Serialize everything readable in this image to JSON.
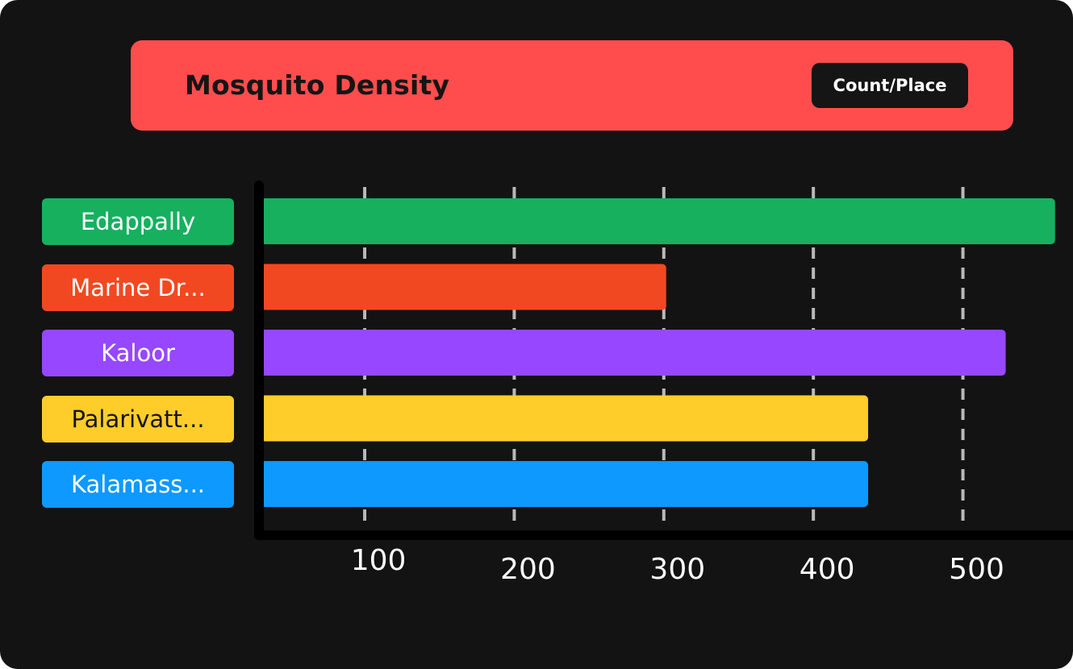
{
  "header": {
    "title": "Mosquito Density",
    "badge": "Count/Place"
  },
  "chart_data": {
    "type": "bar",
    "orientation": "horizontal",
    "title": "Mosquito Density",
    "subtitle": "Count/Place",
    "xlabel": "",
    "ylabel": "",
    "categories": [
      "Edappally",
      "Marine Dr...",
      "Kaloor",
      "Palarivatt...",
      "Kalamass..."
    ],
    "values": [
      560,
      300,
      527,
      435,
      435
    ],
    "colors": [
      "#16b05f",
      "#f24822",
      "#9747ff",
      "#ffcd29",
      "#0d99ff"
    ],
    "label_text_colors": [
      "#ffffff",
      "#ffffff",
      "#ffffff",
      "#151515",
      "#ffffff"
    ],
    "x_ticks": [
      100,
      200,
      300,
      400,
      500
    ],
    "xlim": [
      32,
      572
    ],
    "grid": "vertical-dashed",
    "legend": "none"
  }
}
